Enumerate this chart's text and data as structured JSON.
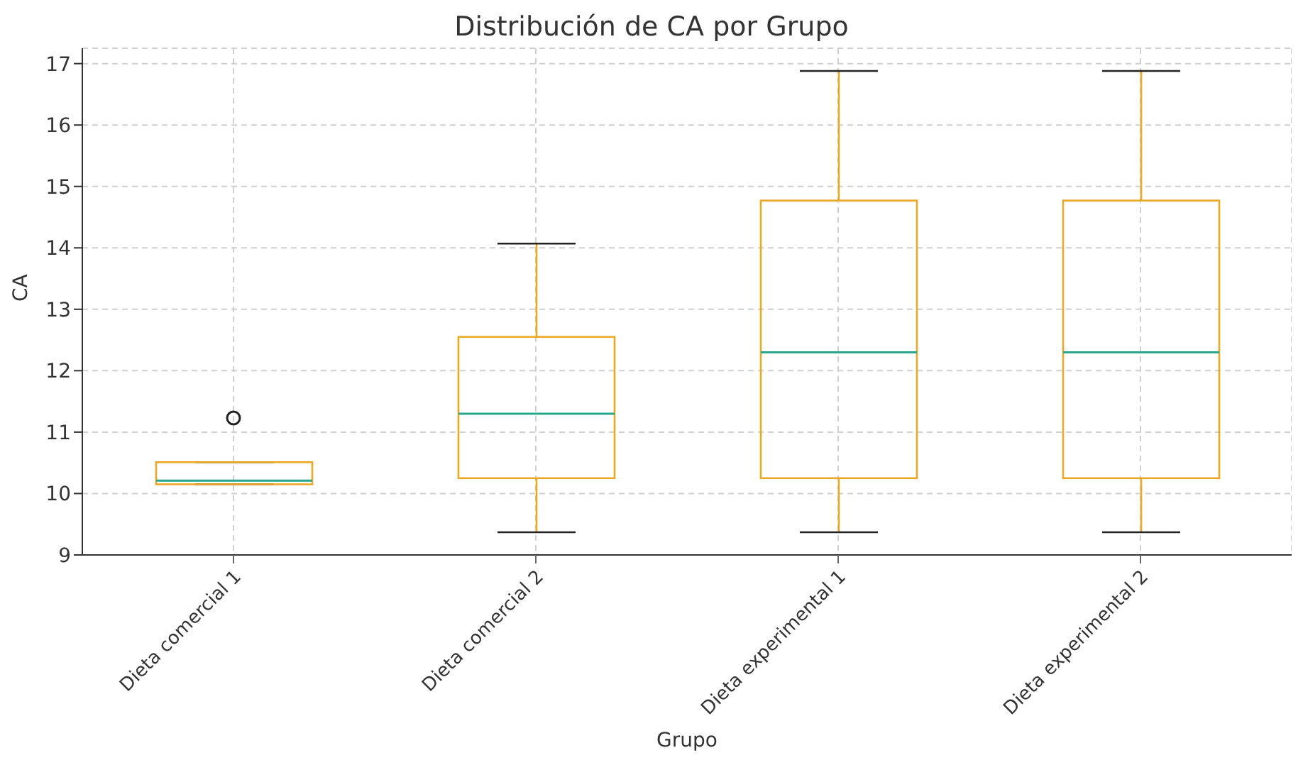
{
  "chart_data": {
    "type": "box",
    "title": "Distribución de CA por Grupo",
    "xlabel": "Grupo",
    "ylabel": "CA",
    "categories": [
      "Dieta comercial 1",
      "Dieta comercial 2",
      "Dieta experimental 1",
      "Dieta experimental 2"
    ],
    "series": [
      {
        "color": "#e9a825",
        "boxes": [
          {
            "low": 10.15,
            "q1": 10.15,
            "median": 10.21,
            "q3": 10.51,
            "high": 10.51,
            "outliers": [
              11.23
            ]
          },
          {
            "low": 9.37,
            "q1": 10.25,
            "median": 11.3,
            "q3": 12.55,
            "high": 14.07
          },
          {
            "low": 9.37,
            "q1": 10.25,
            "median": 12.3,
            "q3": 14.77,
            "high": 16.88
          },
          {
            "low": 9.37,
            "q1": 10.25,
            "median": 12.3,
            "q3": 14.77,
            "high": 16.88
          }
        ]
      }
    ],
    "ylim": [
      9,
      17.25
    ],
    "yticks": [
      9,
      10,
      11,
      12,
      13,
      14,
      15,
      16,
      17
    ],
    "grid": true
  }
}
